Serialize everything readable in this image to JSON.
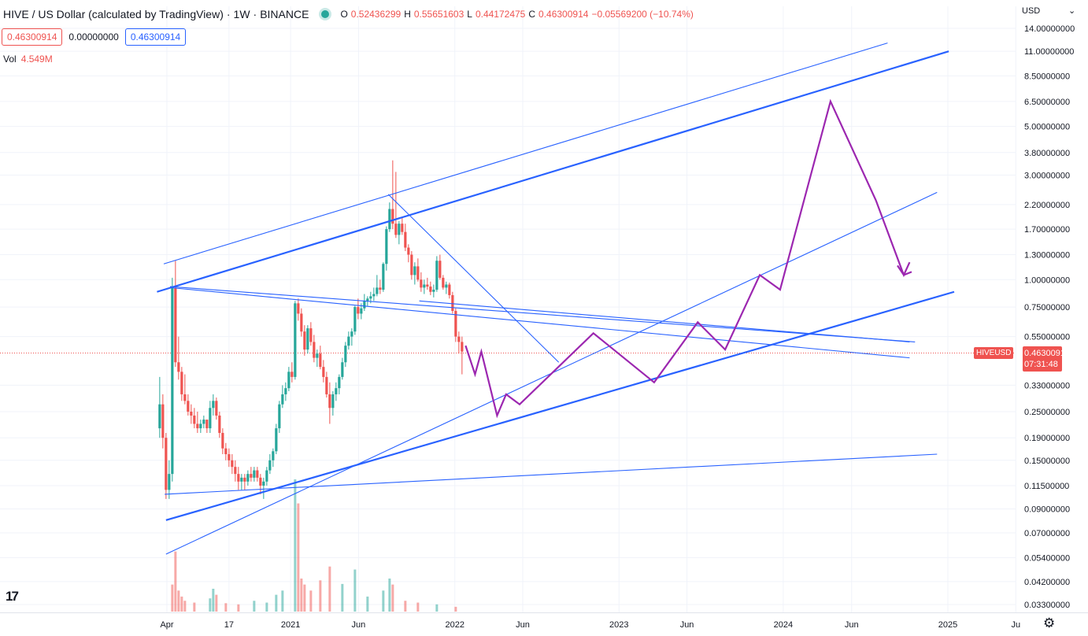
{
  "header": {
    "title": "HIVE / US Dollar (calculated by TradingView)",
    "interval": "1W",
    "exchange": "BINANCE",
    "ohlc": {
      "open_label": "O",
      "open": "0.52436299",
      "high_label": "H",
      "high": "0.55651603",
      "low_label": "L",
      "low": "0.44172475",
      "close_label": "C",
      "close": "0.46300914",
      "change": "−0.05569200 (−10.74%)"
    }
  },
  "order_boxes": {
    "sell": "0.46300914",
    "spread": "0.00000000",
    "buy": "0.46300914"
  },
  "volume": {
    "label": "Vol",
    "value": "4.549M"
  },
  "price_axis": {
    "currency": "USD",
    "chevron": "⌄",
    "current_price": "0.46300914",
    "countdown": "07:31:48",
    "symbol": "HIVEUSD"
  },
  "logo": "17",
  "settings_icon": "gear-icon",
  "chart_data": {
    "type": "candlestick",
    "scale": "log",
    "ylim": [
      0.0315,
      16.5
    ],
    "yticks": [
      {
        "value": 14.0,
        "label": "14.00000000"
      },
      {
        "value": 11.0,
        "label": "11.00000000"
      },
      {
        "value": 8.5,
        "label": "8.50000000"
      },
      {
        "value": 6.5,
        "label": "6.50000000"
      },
      {
        "value": 5.0,
        "label": "5.00000000"
      },
      {
        "value": 3.8,
        "label": "3.80000000"
      },
      {
        "value": 3.0,
        "label": "3.00000000"
      },
      {
        "value": 2.2,
        "label": "2.20000000"
      },
      {
        "value": 1.7,
        "label": "1.70000000"
      },
      {
        "value": 1.3,
        "label": "1.30000000"
      },
      {
        "value": 1.0,
        "label": "1.00000000"
      },
      {
        "value": 0.75,
        "label": "0.75000000"
      },
      {
        "value": 0.55,
        "label": "0.55000000"
      },
      {
        "value": 0.33,
        "label": "0.33000000"
      },
      {
        "value": 0.25,
        "label": "0.25000000"
      },
      {
        "value": 0.19,
        "label": "0.19000000"
      },
      {
        "value": 0.15,
        "label": "0.15000000"
      },
      {
        "value": 0.115,
        "label": "0.11500000"
      },
      {
        "value": 0.09,
        "label": "0.09000000"
      },
      {
        "value": 0.07,
        "label": "0.07000000"
      },
      {
        "value": 0.054,
        "label": "0.05400000"
      },
      {
        "value": 0.042,
        "label": "0.04200000"
      },
      {
        "value": 0.033,
        "label": "0.03300000"
      }
    ],
    "xticks": [
      {
        "date": "2020-04-01",
        "label": "Apr"
      },
      {
        "date": "2020-08-17",
        "label": "17"
      },
      {
        "date": "2021-01-01",
        "label": "2021"
      },
      {
        "date": "2021-06-01",
        "label": "Jun"
      },
      {
        "date": "2022-01-01",
        "label": "2022"
      },
      {
        "date": "2022-06-01",
        "label": "Jun"
      },
      {
        "date": "2023-01-01",
        "label": "2023"
      },
      {
        "date": "2023-06-01",
        "label": "Jun"
      },
      {
        "date": "2024-01-01",
        "label": "2024"
      },
      {
        "date": "2024-06-01",
        "label": "Jun"
      },
      {
        "date": "2025-01-01",
        "label": "2025"
      },
      {
        "date": "2025-06-01",
        "label": "Ju"
      }
    ],
    "candles": [
      [
        "2020-03-16",
        0.21,
        0.36,
        0.19,
        0.27
      ],
      [
        "2020-03-23",
        0.27,
        0.3,
        0.17,
        0.19
      ],
      [
        "2020-03-30",
        0.19,
        0.2,
        0.1,
        0.11
      ],
      [
        "2020-04-06",
        0.11,
        0.15,
        0.1,
        0.13
      ],
      [
        "2020-04-13",
        0.13,
        1.02,
        0.12,
        0.92
      ],
      [
        "2020-04-20",
        0.92,
        1.22,
        0.4,
        0.42
      ],
      [
        "2020-04-27",
        0.42,
        0.55,
        0.35,
        0.38
      ],
      [
        "2020-05-04",
        0.38,
        0.4,
        0.28,
        0.3
      ],
      [
        "2020-05-11",
        0.3,
        0.37,
        0.27,
        0.28
      ],
      [
        "2020-05-18",
        0.28,
        0.3,
        0.24,
        0.25
      ],
      [
        "2020-05-25",
        0.25,
        0.27,
        0.22,
        0.24
      ],
      [
        "2020-06-01",
        0.24,
        0.26,
        0.21,
        0.22
      ],
      [
        "2020-06-08",
        0.22,
        0.25,
        0.2,
        0.21
      ],
      [
        "2020-06-15",
        0.21,
        0.23,
        0.2,
        0.22
      ],
      [
        "2020-06-22",
        0.22,
        0.24,
        0.21,
        0.23
      ],
      [
        "2020-06-29",
        0.23,
        0.23,
        0.2,
        0.21
      ],
      [
        "2020-07-06",
        0.21,
        0.28,
        0.2,
        0.26
      ],
      [
        "2020-07-13",
        0.26,
        0.3,
        0.24,
        0.28
      ],
      [
        "2020-07-20",
        0.28,
        0.29,
        0.23,
        0.24
      ],
      [
        "2020-07-27",
        0.24,
        0.25,
        0.19,
        0.2
      ],
      [
        "2020-08-03",
        0.2,
        0.21,
        0.16,
        0.17
      ],
      [
        "2020-08-10",
        0.17,
        0.18,
        0.15,
        0.16
      ],
      [
        "2020-08-17",
        0.16,
        0.17,
        0.14,
        0.15
      ],
      [
        "2020-08-24",
        0.15,
        0.16,
        0.13,
        0.14
      ],
      [
        "2020-08-31",
        0.14,
        0.15,
        0.12,
        0.13
      ],
      [
        "2020-09-07",
        0.13,
        0.14,
        0.11,
        0.12
      ],
      [
        "2020-09-14",
        0.12,
        0.13,
        0.11,
        0.125
      ],
      [
        "2020-09-21",
        0.125,
        0.13,
        0.11,
        0.12
      ],
      [
        "2020-09-28",
        0.12,
        0.135,
        0.115,
        0.13
      ],
      [
        "2020-10-05",
        0.13,
        0.14,
        0.12,
        0.125
      ],
      [
        "2020-10-12",
        0.125,
        0.14,
        0.12,
        0.135
      ],
      [
        "2020-10-19",
        0.135,
        0.14,
        0.12,
        0.125
      ],
      [
        "2020-10-26",
        0.125,
        0.13,
        0.105,
        0.115
      ],
      [
        "2020-11-02",
        0.115,
        0.125,
        0.1,
        0.12
      ],
      [
        "2020-11-09",
        0.12,
        0.14,
        0.115,
        0.135
      ],
      [
        "2020-11-16",
        0.135,
        0.16,
        0.13,
        0.15
      ],
      [
        "2020-11-23",
        0.15,
        0.17,
        0.14,
        0.165
      ],
      [
        "2020-11-30",
        0.165,
        0.22,
        0.16,
        0.21
      ],
      [
        "2020-12-07",
        0.21,
        0.28,
        0.2,
        0.27
      ],
      [
        "2020-12-14",
        0.27,
        0.33,
        0.26,
        0.3
      ],
      [
        "2020-12-21",
        0.3,
        0.34,
        0.28,
        0.32
      ],
      [
        "2020-12-28",
        0.32,
        0.4,
        0.31,
        0.38
      ],
      [
        "2021-01-04",
        0.38,
        0.42,
        0.34,
        0.36
      ],
      [
        "2021-01-11",
        0.36,
        0.8,
        0.35,
        0.78
      ],
      [
        "2021-01-18",
        0.78,
        0.82,
        0.65,
        0.7
      ],
      [
        "2021-01-25",
        0.7,
        0.74,
        0.55,
        0.58
      ],
      [
        "2021-02-01",
        0.58,
        0.62,
        0.45,
        0.48
      ],
      [
        "2021-02-08",
        0.48,
        0.62,
        0.46,
        0.6
      ],
      [
        "2021-02-15",
        0.6,
        0.64,
        0.5,
        0.52
      ],
      [
        "2021-02-22",
        0.52,
        0.56,
        0.42,
        0.44
      ],
      [
        "2021-03-01",
        0.44,
        0.48,
        0.4,
        0.46
      ],
      [
        "2021-03-08",
        0.46,
        0.5,
        0.39,
        0.4
      ],
      [
        "2021-03-15",
        0.4,
        0.43,
        0.34,
        0.36
      ],
      [
        "2021-03-22",
        0.36,
        0.38,
        0.29,
        0.3
      ],
      [
        "2021-03-29",
        0.3,
        0.34,
        0.22,
        0.26
      ],
      [
        "2021-04-05",
        0.26,
        0.31,
        0.24,
        0.3
      ],
      [
        "2021-04-12",
        0.3,
        0.34,
        0.28,
        0.32
      ],
      [
        "2021-04-19",
        0.32,
        0.37,
        0.3,
        0.36
      ],
      [
        "2021-04-26",
        0.36,
        0.44,
        0.35,
        0.42
      ],
      [
        "2021-05-03",
        0.42,
        0.52,
        0.4,
        0.5
      ],
      [
        "2021-05-10",
        0.5,
        0.58,
        0.48,
        0.55
      ],
      [
        "2021-05-17",
        0.55,
        0.6,
        0.5,
        0.58
      ],
      [
        "2021-05-24",
        0.58,
        0.76,
        0.56,
        0.75
      ],
      [
        "2021-05-31",
        0.75,
        0.82,
        0.66,
        0.7
      ],
      [
        "2021-06-07",
        0.7,
        0.78,
        0.66,
        0.74
      ],
      [
        "2021-06-14",
        0.74,
        0.86,
        0.72,
        0.8
      ],
      [
        "2021-06-21",
        0.8,
        0.84,
        0.76,
        0.82
      ],
      [
        "2021-06-28",
        0.82,
        0.88,
        0.78,
        0.84
      ],
      [
        "2021-07-05",
        0.84,
        0.92,
        0.8,
        0.86
      ],
      [
        "2021-07-12",
        0.86,
        1.05,
        0.84,
        0.92
      ],
      [
        "2021-07-19",
        0.92,
        1.0,
        0.86,
        0.9
      ],
      [
        "2021-07-26",
        0.9,
        1.2,
        0.88,
        1.18
      ],
      [
        "2021-08-02",
        1.18,
        1.75,
        1.1,
        1.7
      ],
      [
        "2021-08-09",
        1.7,
        2.25,
        1.65,
        2.1
      ],
      [
        "2021-08-16",
        2.1,
        3.5,
        1.7,
        1.8
      ],
      [
        "2021-08-23",
        1.8,
        3.1,
        1.55,
        1.6
      ],
      [
        "2021-08-30",
        1.6,
        1.85,
        1.45,
        1.8
      ],
      [
        "2021-09-06",
        1.8,
        1.92,
        1.6,
        1.65
      ],
      [
        "2021-09-13",
        1.65,
        1.8,
        1.35,
        1.4
      ],
      [
        "2021-09-20",
        1.4,
        1.45,
        1.2,
        1.3
      ],
      [
        "2021-09-27",
        1.3,
        1.35,
        1.0,
        1.05
      ],
      [
        "2021-10-04",
        1.05,
        1.2,
        0.95,
        1.15
      ],
      [
        "2021-10-11",
        1.15,
        1.25,
        0.98,
        1.0
      ],
      [
        "2021-10-18",
        1.0,
        1.08,
        0.88,
        0.92
      ],
      [
        "2021-10-25",
        0.92,
        1.0,
        0.86,
        0.95
      ],
      [
        "2021-11-01",
        0.95,
        1.02,
        0.9,
        0.93
      ],
      [
        "2021-11-08",
        0.93,
        0.98,
        0.85,
        0.88
      ],
      [
        "2021-11-15",
        0.88,
        0.95,
        0.83,
        0.9
      ],
      [
        "2021-11-22",
        0.9,
        1.28,
        0.88,
        1.22
      ],
      [
        "2021-11-29",
        1.22,
        1.3,
        1.0,
        1.02
      ],
      [
        "2021-12-06",
        1.02,
        1.05,
        0.9,
        0.92
      ],
      [
        "2021-12-13",
        0.92,
        0.98,
        0.86,
        0.95
      ],
      [
        "2021-12-20",
        0.95,
        0.97,
        0.82,
        0.85
      ],
      [
        "2021-12-27",
        0.85,
        0.88,
        0.7,
        0.72
      ],
      [
        "2022-01-03",
        0.72,
        0.74,
        0.52,
        0.55
      ],
      [
        "2022-01-10",
        0.55,
        0.58,
        0.46,
        0.52
      ],
      [
        "2022-01-17",
        0.52,
        0.55,
        0.37,
        0.47
      ]
    ],
    "volume_bars": [
      {
        "date": "2020-04-13",
        "value": 0.45,
        "up": false
      },
      {
        "date": "2020-04-20",
        "value": 1.0,
        "up": false
      },
      {
        "date": "2020-04-27",
        "value": 0.35,
        "up": false
      },
      {
        "date": "2020-05-04",
        "value": 0.25,
        "up": false
      },
      {
        "date": "2020-05-11",
        "value": 0.18,
        "up": false
      },
      {
        "date": "2020-06-01",
        "value": 0.15,
        "up": false
      },
      {
        "date": "2020-07-06",
        "value": 0.22,
        "up": true
      },
      {
        "date": "2020-07-13",
        "value": 0.38,
        "up": true
      },
      {
        "date": "2020-07-20",
        "value": 0.28,
        "up": false
      },
      {
        "date": "2020-08-10",
        "value": 0.14,
        "up": false
      },
      {
        "date": "2020-09-07",
        "value": 0.12,
        "up": false
      },
      {
        "date": "2020-10-12",
        "value": 0.18,
        "up": true
      },
      {
        "date": "2020-11-09",
        "value": 0.15,
        "up": true
      },
      {
        "date": "2020-11-30",
        "value": 0.28,
        "up": true
      },
      {
        "date": "2020-12-14",
        "value": 0.35,
        "up": true
      },
      {
        "date": "2021-01-11",
        "value": 2.2,
        "up": true
      },
      {
        "date": "2021-01-18",
        "value": 1.8,
        "up": false
      },
      {
        "date": "2021-01-25",
        "value": 0.55,
        "up": false
      },
      {
        "date": "2021-02-01",
        "value": 0.45,
        "up": false
      },
      {
        "date": "2021-02-15",
        "value": 0.35,
        "up": false
      },
      {
        "date": "2021-03-08",
        "value": 0.52,
        "up": false
      },
      {
        "date": "2021-03-29",
        "value": 0.75,
        "up": false
      },
      {
        "date": "2021-04-26",
        "value": 0.46,
        "up": true
      },
      {
        "date": "2021-05-24",
        "value": 0.7,
        "up": true
      },
      {
        "date": "2021-06-21",
        "value": 0.25,
        "up": true
      },
      {
        "date": "2021-07-26",
        "value": 0.35,
        "up": true
      },
      {
        "date": "2021-08-09",
        "value": 0.55,
        "up": true
      },
      {
        "date": "2021-08-16",
        "value": 0.45,
        "up": false
      },
      {
        "date": "2021-09-13",
        "value": 0.18,
        "up": false
      },
      {
        "date": "2021-10-11",
        "value": 0.15,
        "up": false
      },
      {
        "date": "2021-11-22",
        "value": 0.12,
        "up": true
      },
      {
        "date": "2022-01-03",
        "value": 0.08,
        "up": false
      }
    ],
    "trendlines": [
      {
        "color": "#2962ff",
        "width": 2,
        "from": [
          "2020-03-10",
          0.88
        ],
        "to": [
          "2025-01-03",
          11.0
        ]
      },
      {
        "color": "#2962ff",
        "width": 1,
        "from": [
          "2020-03-25",
          1.18
        ],
        "to": [
          "2024-08-20",
          12.0
        ]
      },
      {
        "color": "#2962ff",
        "width": 2,
        "from": [
          "2020-03-30",
          0.08
        ],
        "to": [
          "2025-01-15",
          0.88
        ]
      },
      {
        "color": "#2962ff",
        "width": 1,
        "from": [
          "2020-03-30",
          0.056
        ],
        "to": [
          "2024-12-08",
          2.5
        ]
      },
      {
        "color": "#2962ff",
        "width": 1,
        "from": [
          "2020-03-27",
          0.105
        ],
        "to": [
          "2024-12-08",
          0.16
        ]
      },
      {
        "color": "#2962ff",
        "width": 1,
        "from": [
          "2020-04-08",
          0.93
        ],
        "to": [
          "2024-10-20",
          0.52
        ]
      },
      {
        "color": "#2962ff",
        "width": 1,
        "from": [
          "2020-04-08",
          0.92
        ],
        "to": [
          "2024-10-08",
          0.44
        ]
      },
      {
        "color": "#2962ff",
        "width": 1,
        "from": [
          "2021-10-14",
          0.8
        ],
        "to": [
          "2024-10-08",
          0.52
        ]
      },
      {
        "color": "#2962ff",
        "width": 1,
        "from": [
          "2021-08-06",
          2.45
        ],
        "to": [
          "2022-08-20",
          0.42
        ]
      }
    ],
    "projection": {
      "color": "#9c27b0",
      "points": [
        [
          "2022-01-25",
          0.5
        ],
        [
          "2022-02-15",
          0.37
        ],
        [
          "2022-03-01",
          0.47
        ],
        [
          "2022-04-05",
          0.24
        ],
        [
          "2022-04-25",
          0.3
        ],
        [
          "2022-05-25",
          0.27
        ],
        [
          "2022-11-05",
          0.57
        ],
        [
          "2023-03-20",
          0.34
        ],
        [
          "2023-06-25",
          0.64
        ],
        [
          "2023-08-25",
          0.48
        ],
        [
          "2023-11-10",
          1.05
        ],
        [
          "2023-12-25",
          0.9
        ],
        [
          "2024-04-15",
          6.5
        ],
        [
          "2024-07-25",
          2.3
        ],
        [
          "2024-09-25",
          1.05
        ],
        [
          "2024-10-08",
          1.2
        ]
      ],
      "arrow_tip": [
        "2024-09-25",
        1.05
      ]
    },
    "current_price_line": 0.463
  }
}
